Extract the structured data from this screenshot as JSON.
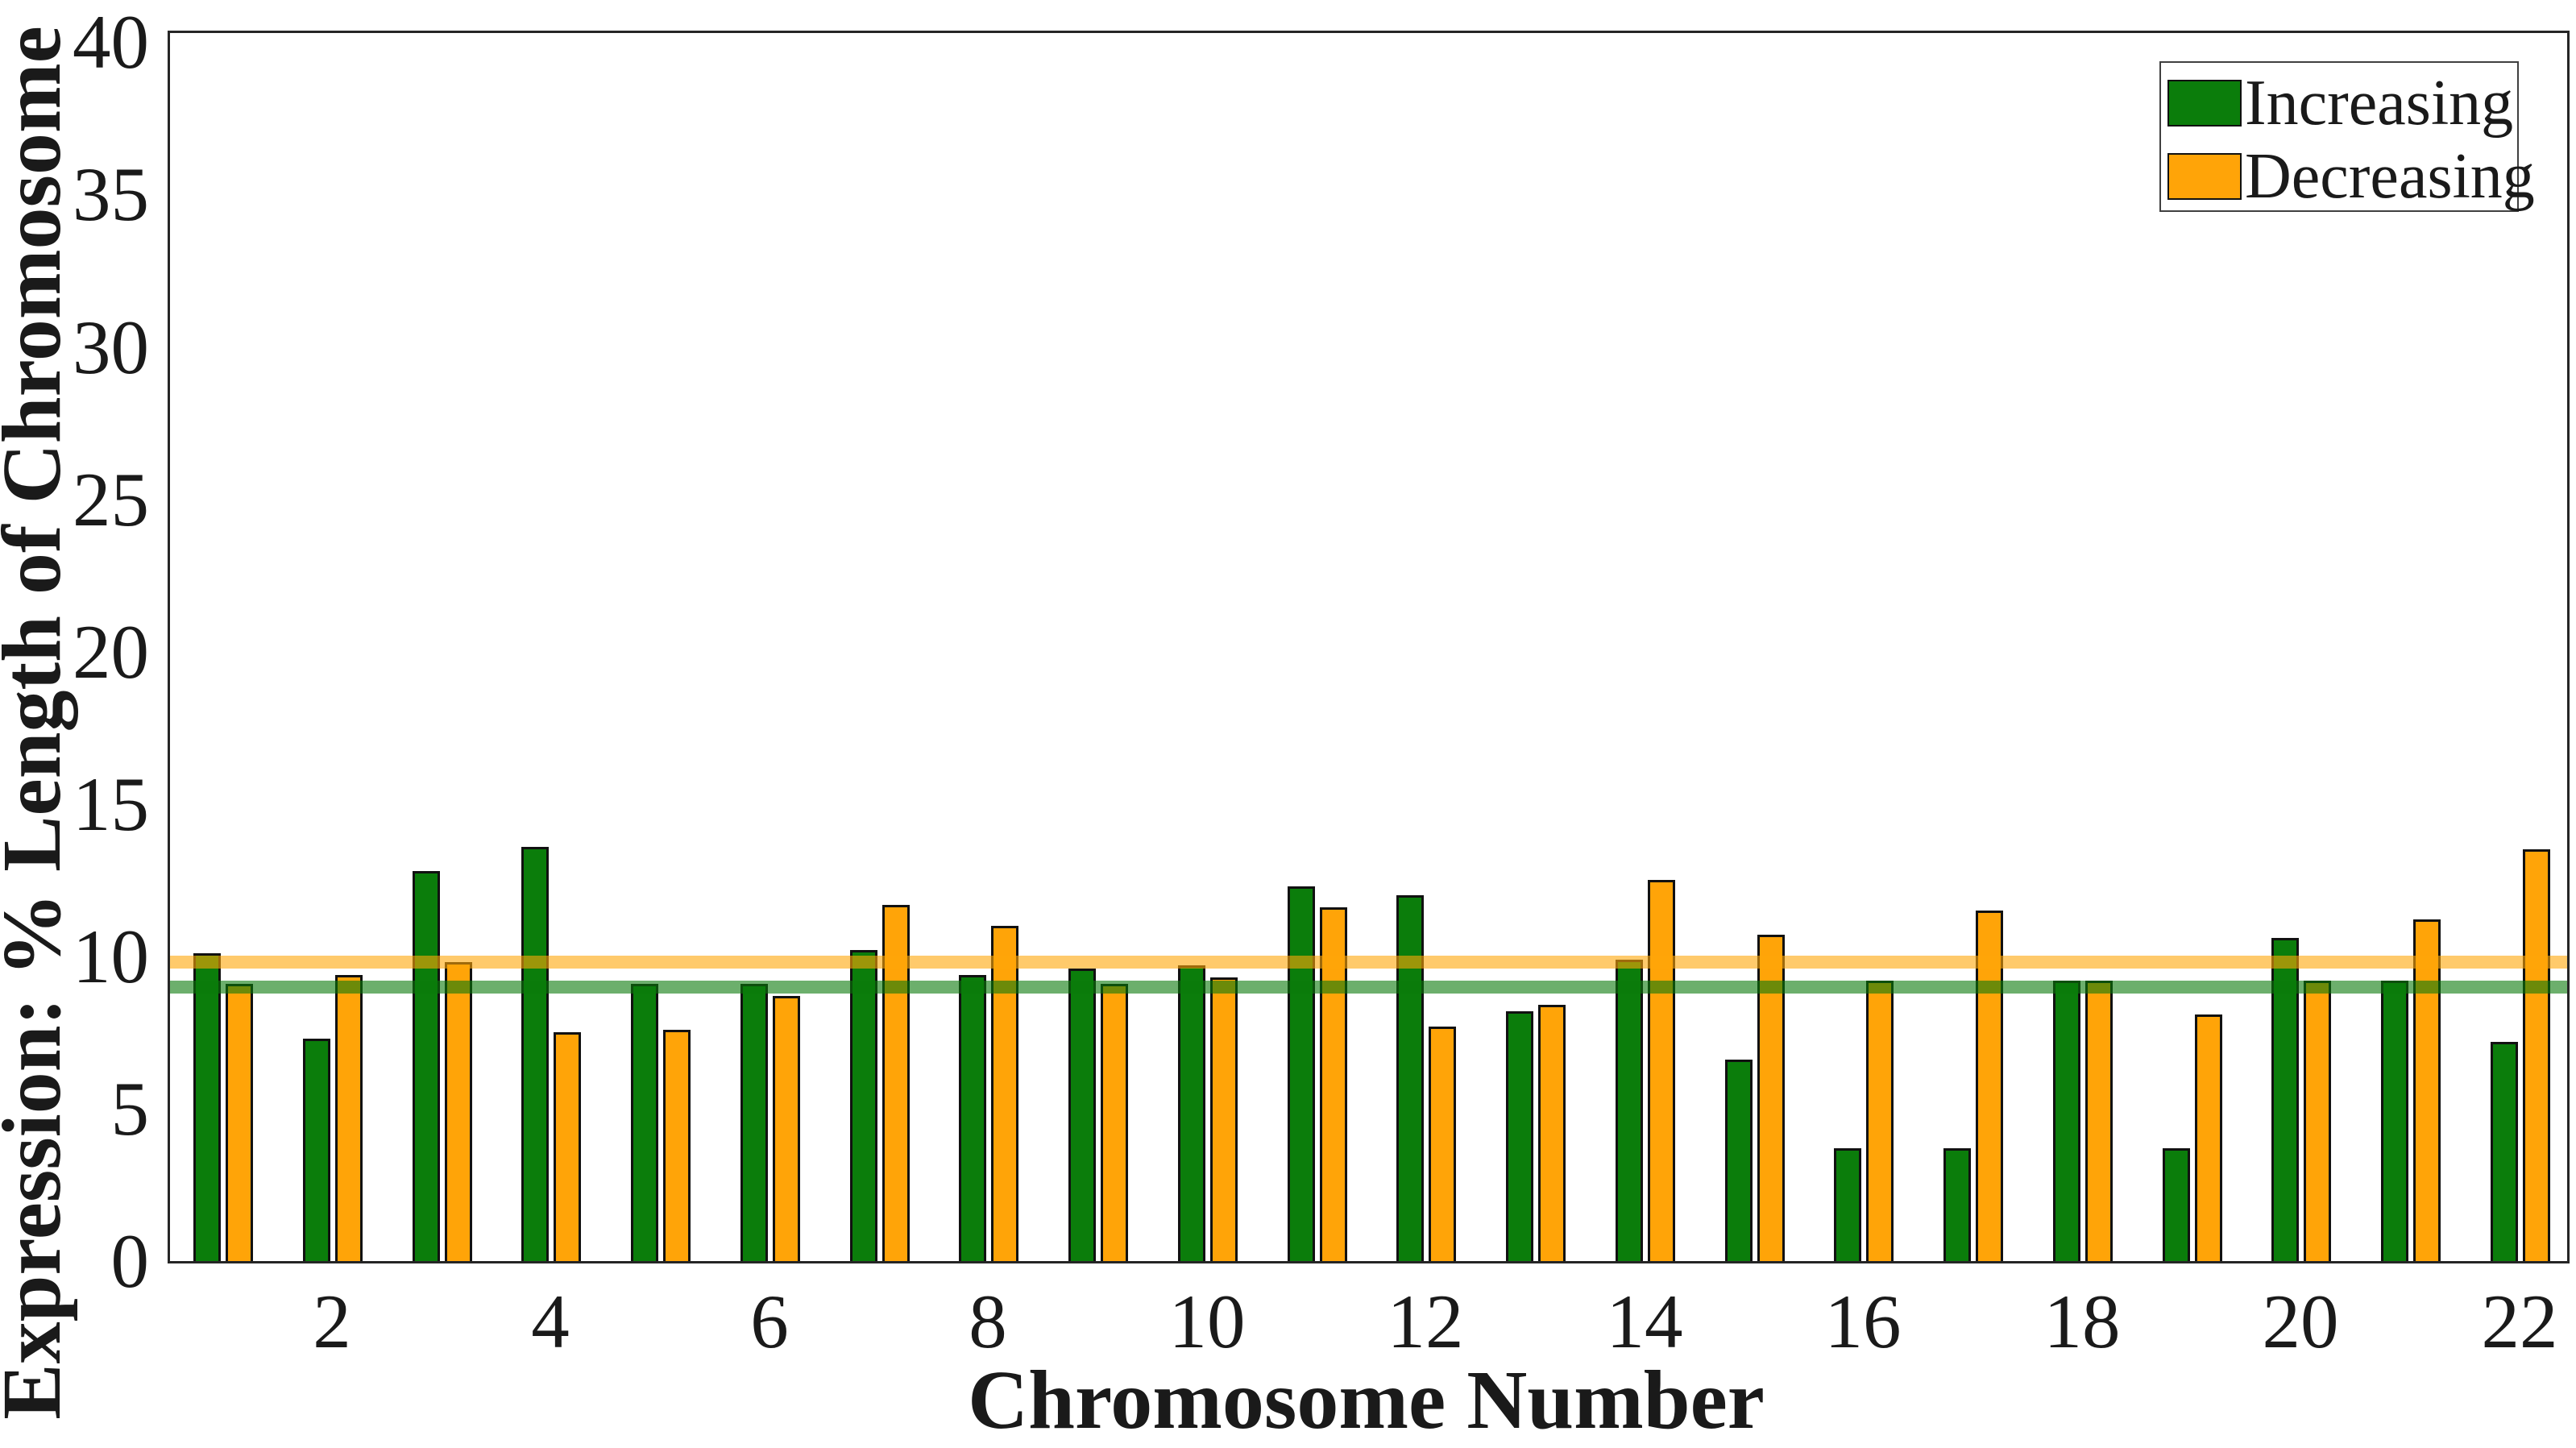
{
  "figure": {
    "xlabel": "Chromosome Number",
    "ylabel": "Expression: % Length of Chromosome",
    "background": "#ffffff",
    "frame_color": "#262626"
  },
  "legend": {
    "position": "top-right",
    "items": [
      {
        "label": "Increasing",
        "color": "#0b7d0b"
      },
      {
        "label": "Decreasing",
        "color": "#ffa408"
      }
    ]
  },
  "chart_data": {
    "type": "bar",
    "title": "",
    "xlabel": "Chromosome Number",
    "ylabel": "Expression: % Length of Chromosome",
    "categories": [
      1,
      2,
      3,
      4,
      5,
      6,
      7,
      8,
      9,
      10,
      11,
      12,
      13,
      14,
      15,
      16,
      17,
      18,
      19,
      20,
      21,
      22
    ],
    "series": [
      {
        "name": "Increasing",
        "color": "#0b7d0b",
        "values": [
          10.1,
          7.3,
          12.8,
          13.6,
          9.1,
          9.1,
          10.2,
          9.4,
          9.6,
          9.7,
          12.3,
          12.0,
          8.2,
          9.9,
          6.6,
          3.7,
          3.7,
          9.2,
          3.7,
          10.6,
          9.2,
          7.2
        ]
      },
      {
        "name": "Decreasing",
        "color": "#ffa408",
        "values": [
          9.1,
          9.4,
          9.8,
          7.5,
          7.6,
          8.7,
          11.7,
          11.0,
          9.1,
          9.3,
          11.6,
          7.7,
          8.4,
          12.5,
          10.7,
          9.2,
          11.5,
          9.2,
          8.1,
          9.2,
          11.2,
          13.5
        ]
      }
    ],
    "reference_lines": [
      {
        "series": "Decreasing",
        "value": 9.8,
        "color": "rgba(255,166,8,0.60)"
      },
      {
        "series": "Increasing",
        "value": 9.0,
        "color": "rgba(10,122,10,0.60)"
      }
    ],
    "ylim": [
      0,
      40.3
    ],
    "yticks": [
      0,
      5,
      10,
      15,
      20,
      25,
      30,
      35,
      40
    ],
    "xticks": [
      2,
      4,
      6,
      8,
      10,
      12,
      14,
      16,
      18,
      20,
      22
    ],
    "legend_position": "top-right",
    "grid": false,
    "bar_edge_color": "#111111"
  }
}
